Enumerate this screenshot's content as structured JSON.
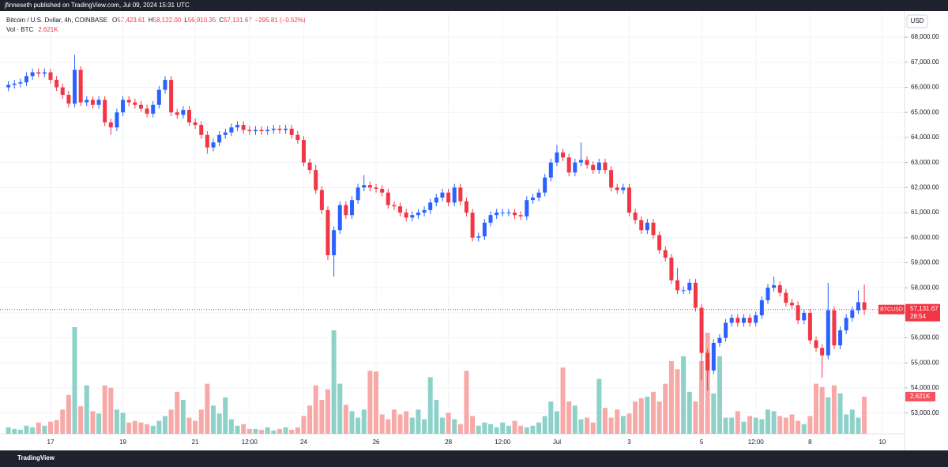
{
  "header": {
    "published": "jfinneseth published on TradingView.com, Jul 09, 2024 15:31 UTC",
    "symbol": "Bitcoin / U.S. Dollar, 4h, COINBASE",
    "ohlc": [
      {
        "key": "O",
        "value": "57,423.61"
      },
      {
        "key": "H",
        "value": "58,122.00"
      },
      {
        "key": "L",
        "value": "56,910.35"
      },
      {
        "key": "C",
        "value": "57,131.67"
      }
    ],
    "change": "−295.81 (−0.52%)",
    "volume_label": "Vol · BTC",
    "volume_value": "2.621K"
  },
  "price_tag": {
    "symbol": "BTCUSD",
    "price": "57,131.67",
    "countdown": "28:54"
  },
  "volume_tag": "2.621K",
  "currency": "USD",
  "footer": "TradingView",
  "chart_data": {
    "type": "candlestick",
    "up_color": "#2962ff",
    "down_color": "#f23645",
    "volume_up_color": "#8dd1c9",
    "volume_down_color": "#f7a9a7",
    "grid": true,
    "ylim": [
      52170,
      68540
    ],
    "yticks": [
      {
        "value": 53000,
        "label": "53,000.00"
      },
      {
        "value": 54000,
        "label": "54,000.00"
      },
      {
        "value": 55000,
        "label": "55,000.00"
      },
      {
        "value": 56000,
        "label": "56,000.00"
      },
      {
        "value": 57000,
        "label": "57,000.00"
      },
      {
        "value": 58000,
        "label": "58,000.00"
      },
      {
        "value": 59000,
        "label": "59,000.00"
      },
      {
        "value": 60000,
        "label": "60,000.00"
      },
      {
        "value": 61000,
        "label": "61,000.00"
      },
      {
        "value": 62000,
        "label": "62,000.00"
      },
      {
        "value": 63000,
        "label": "63,000.00"
      },
      {
        "value": 64000,
        "label": "64,000.00"
      },
      {
        "value": 65000,
        "label": "65,000.00"
      },
      {
        "value": 66000,
        "label": "66,000.00"
      },
      {
        "value": 67000,
        "label": "67,000.00"
      },
      {
        "value": 68000,
        "label": "68,000.00"
      }
    ],
    "categories": [
      null,
      null,
      null,
      null,
      null,
      null,
      null,
      "17",
      null,
      null,
      null,
      null,
      null,
      null,
      null,
      null,
      null,
      null,
      null,
      "19",
      null,
      null,
      null,
      null,
      null,
      null,
      null,
      null,
      null,
      null,
      null,
      "21",
      null,
      null,
      null,
      null,
      null,
      null,
      null,
      null,
      "12:00",
      null,
      null,
      null,
      null,
      null,
      null,
      null,
      null,
      "24",
      null,
      null,
      null,
      null,
      null,
      null,
      null,
      null,
      null,
      null,
      null,
      "26",
      null,
      null,
      null,
      null,
      null,
      null,
      null,
      null,
      null,
      null,
      null,
      "28",
      null,
      null,
      null,
      null,
      null,
      null,
      null,
      null,
      "12:00",
      null,
      null,
      null,
      null,
      null,
      null,
      null,
      null,
      "Jul",
      null,
      null,
      null,
      null,
      null,
      null,
      null,
      null,
      null,
      null,
      null,
      "3",
      null,
      null,
      null,
      null,
      null,
      null,
      null,
      null,
      null,
      null,
      null,
      "5",
      null,
      null,
      null,
      null,
      null,
      null,
      null,
      null,
      "12:00",
      null,
      null,
      null,
      null,
      null,
      null,
      null,
      null,
      "8",
      null,
      null,
      null,
      null,
      null,
      null,
      null,
      null,
      null,
      null,
      null,
      "10"
    ],
    "open": [
      66000,
      66100,
      66150,
      66200,
      66450,
      66600,
      66550,
      66600,
      66300,
      66000,
      65700,
      65350,
      66700,
      65400,
      65500,
      65300,
      65500,
      64600,
      64400,
      65000,
      65500,
      65400,
      65300,
      65150,
      64950,
      65300,
      65900,
      66300,
      65000,
      64900,
      65100,
      64600,
      64500,
      64100,
      63600,
      63800,
      64100,
      64200,
      64400,
      64500,
      64300,
      64250,
      64300,
      64250,
      64300,
      64350,
      64300,
      64350,
      64100,
      63900,
      63000,
      62700,
      61900,
      61100,
      59300,
      60300,
      61300,
      60900,
      61500,
      62000,
      62100,
      62000,
      61950,
      61800,
      61300,
      61250,
      61000,
      60800,
      60900,
      61000,
      61100,
      61400,
      61600,
      61800,
      61400,
      62000,
      61450,
      61000,
      60000,
      60050,
      60600,
      60900,
      61000,
      61000,
      61000,
      60900,
      60850,
      61500,
      61600,
      61800,
      62400,
      63000,
      63400,
      63200,
      62600,
      63000,
      63100,
      62900,
      62700,
      63000,
      62700,
      62000,
      61900,
      62000,
      61000,
      60700,
      60300,
      60600,
      60100,
      59500,
      59200,
      58300,
      57900,
      57900,
      58200,
      57200,
      55400,
      54700,
      55800,
      56000,
      56600,
      56800,
      56600,
      56800,
      56600,
      56900,
      57500,
      58000,
      58100,
      57800,
      57400,
      57300,
      56700,
      57000,
      55900,
      55600,
      55300,
      57100,
      55700,
      56300,
      56800,
      57100,
      57423.61,
      null,
      null,
      null
    ],
    "high": [
      66250,
      66300,
      66350,
      66600,
      66750,
      66750,
      66750,
      66750,
      66450,
      66150,
      65850,
      67300,
      66850,
      65650,
      65650,
      65650,
      65650,
      64750,
      65150,
      65650,
      65650,
      65550,
      65450,
      65300,
      65450,
      66050,
      66450,
      66450,
      65150,
      65250,
      65250,
      64750,
      64650,
      64250,
      63950,
      64250,
      64350,
      64550,
      64650,
      64650,
      64450,
      64450,
      64450,
      64450,
      64500,
      64500,
      64500,
      64500,
      64250,
      64050,
      63150,
      62900,
      62050,
      61250,
      60450,
      61450,
      61450,
      61650,
      62150,
      62500,
      62250,
      62150,
      62100,
      61950,
      61450,
      61400,
      61150,
      61050,
      61150,
      61250,
      61550,
      61750,
      61950,
      61950,
      62150,
      62150,
      61600,
      61150,
      60200,
      60750,
      61050,
      61150,
      61150,
      61150,
      61150,
      61050,
      61650,
      61750,
      61950,
      62550,
      63150,
      63700,
      63550,
      63350,
      63150,
      63800,
      63250,
      63050,
      63150,
      63150,
      62850,
      62150,
      62150,
      62150,
      61150,
      60850,
      60750,
      60750,
      60250,
      59650,
      59350,
      58800,
      58050,
      58350,
      58350,
      57350,
      55550,
      55950,
      56150,
      56750,
      56950,
      56950,
      56950,
      56950,
      57050,
      57650,
      58150,
      58450,
      58250,
      57950,
      57550,
      57450,
      57150,
      57150,
      56050,
      55750,
      58200,
      57250,
      56450,
      56950,
      57250,
      57900,
      58122,
      null,
      null,
      null
    ],
    "low": [
      65850,
      65950,
      66000,
      66050,
      66300,
      66400,
      66400,
      66150,
      65850,
      65550,
      65200,
      65200,
      65250,
      65250,
      65150,
      65150,
      64450,
      64100,
      64250,
      64850,
      65250,
      65150,
      65000,
      64800,
      64800,
      65150,
      65750,
      64850,
      64750,
      64750,
      64450,
      64350,
      63950,
      63350,
      63450,
      63650,
      63950,
      64050,
      64250,
      64150,
      64100,
      64100,
      64100,
      64100,
      64150,
      64150,
      64150,
      63950,
      63750,
      62850,
      62550,
      61750,
      60950,
      59100,
      58450,
      60150,
      60750,
      60750,
      61350,
      61850,
      61850,
      61800,
      61650,
      61150,
      61100,
      60850,
      60650,
      60650,
      60750,
      60850,
      60950,
      61250,
      61450,
      61250,
      61250,
      61300,
      60850,
      59850,
      59850,
      59900,
      60450,
      60750,
      60850,
      60850,
      60750,
      60700,
      60700,
      61350,
      61450,
      61650,
      62250,
      62850,
      63050,
      62450,
      62450,
      62850,
      62750,
      62550,
      62550,
      62550,
      61850,
      61750,
      61750,
      60850,
      60550,
      60150,
      60150,
      59950,
      59350,
      59050,
      58150,
      57750,
      57750,
      57750,
      57050,
      54300,
      53900,
      54550,
      55650,
      55850,
      56450,
      56450,
      56450,
      56450,
      56450,
      56750,
      57350,
      57850,
      57650,
      57250,
      57150,
      56550,
      56550,
      55750,
      55450,
      54400,
      55150,
      55550,
      55550,
      56150,
      56650,
      56950,
      56910.35,
      null,
      null,
      null
    ],
    "close": [
      66100,
      66150,
      66200,
      66450,
      66600,
      66550,
      66600,
      66300,
      66000,
      65700,
      65350,
      66700,
      65400,
      65500,
      65300,
      65500,
      64600,
      64400,
      65000,
      65500,
      65400,
      65300,
      65150,
      64950,
      65300,
      65900,
      66300,
      65000,
      64900,
      65100,
      64600,
      64500,
      64100,
      63600,
      63800,
      64100,
      64200,
      64400,
      64500,
      64300,
      64250,
      64300,
      64250,
      64300,
      64350,
      64300,
      64350,
      64100,
      63900,
      63000,
      62700,
      61900,
      61100,
      59300,
      60300,
      61300,
      60900,
      61500,
      62000,
      62100,
      62000,
      61950,
      61800,
      61300,
      61250,
      61000,
      60800,
      60900,
      61000,
      61100,
      61400,
      61600,
      61800,
      61400,
      62000,
      61450,
      61000,
      60000,
      60050,
      60600,
      60900,
      61000,
      61000,
      61000,
      60900,
      60850,
      61500,
      61600,
      61800,
      62400,
      63000,
      63400,
      63200,
      62600,
      63000,
      63100,
      62900,
      62700,
      63000,
      62700,
      62000,
      61900,
      62000,
      61000,
      60700,
      60300,
      60600,
      60100,
      59500,
      59200,
      58300,
      57900,
      57900,
      58200,
      57200,
      55400,
      54700,
      55800,
      56000,
      56600,
      56800,
      56600,
      56800,
      56600,
      56900,
      57500,
      58000,
      58100,
      57800,
      57400,
      57300,
      56700,
      57000,
      55900,
      55600,
      55300,
      57100,
      55700,
      56300,
      56800,
      57100,
      57423.61,
      57131.67,
      null,
      null,
      null
    ],
    "volume": [
      456,
      342,
      285,
      570,
      456,
      798,
      570,
      855,
      969,
      1710,
      2736,
      7524,
      1938,
      3420,
      1596,
      1425,
      3420,
      3249,
      1710,
      1482,
      798,
      912,
      798,
      684,
      570,
      912,
      1254,
      1710,
      2964,
      2394,
      1140,
      912,
      1710,
      3534,
      1995,
      1425,
      2565,
      1026,
      570,
      684,
      342,
      342,
      285,
      456,
      228,
      342,
      456,
      285,
      456,
      1254,
      1995,
      3420,
      2394,
      3135,
      7296,
      3534,
      2052,
      1596,
      1140,
      1710,
      4446,
      4389,
      1368,
      1026,
      1710,
      1368,
      1596,
      1140,
      1710,
      1026,
      3990,
      2394,
      1140,
      1482,
      1026,
      684,
      4446,
      1254,
      570,
      798,
      684,
      456,
      798,
      570,
      912,
      570,
      456,
      570,
      798,
      1254,
      2280,
      1596,
      4674,
      2280,
      1995,
      1026,
      1140,
      798,
      3876,
      1824,
      1140,
      1710,
      1254,
      1425,
      2280,
      2508,
      2622,
      2964,
      2280,
      3534,
      5130,
      4560,
      5472,
      2964,
      2280,
      5130,
      7125,
      2850,
      5472,
      1140,
      1140,
      1596,
      855,
      1254,
      1140,
      1026,
      1710,
      1596,
      1254,
      1140,
      1368,
      912,
      684,
      1254,
      3534,
      3306,
      2565,
      3420,
      2850,
      1368,
      1710,
      1140,
      2621,
      null,
      null,
      null
    ]
  }
}
